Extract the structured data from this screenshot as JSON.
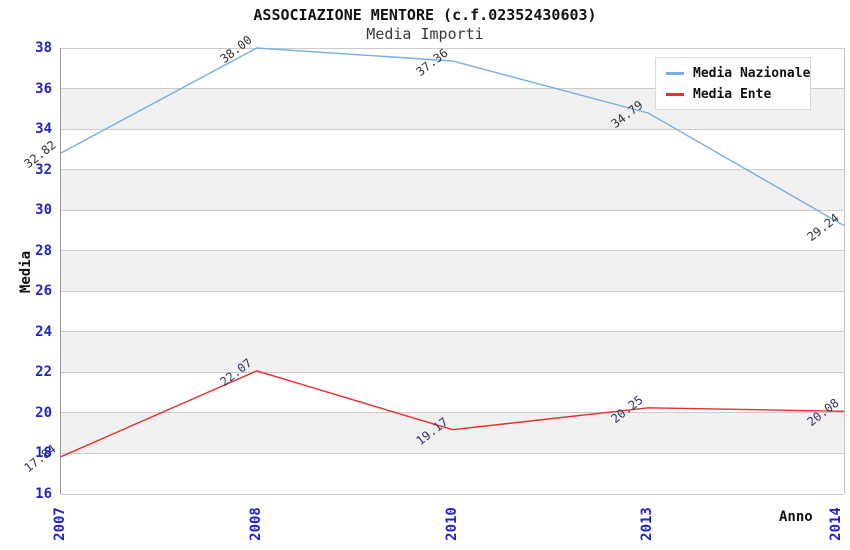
{
  "title": "ASSOCIAZIONE MENTORE (c.f.02352430603)",
  "subtitle": "Media Importi",
  "chart_data": {
    "type": "line",
    "categories": [
      "2007",
      "2008",
      "2010",
      "2013",
      "2014"
    ],
    "series": [
      {
        "name": "Media Nazionale",
        "color": "#78afe6",
        "label_color": "#333333",
        "values": [
          32.82,
          38.0,
          37.36,
          34.79,
          29.24
        ],
        "point_labels": [
          "32.82",
          "38.00",
          "37.36",
          "34.79",
          "29.24"
        ]
      },
      {
        "name": "Media Ente",
        "color": "#eb2d2d",
        "label_color": "#333366",
        "values": [
          17.84,
          22.07,
          19.17,
          20.25,
          20.08
        ],
        "point_labels": [
          "17.84",
          "22.07",
          "19.17",
          "20.25",
          "20.08"
        ]
      }
    ],
    "xlabel": "Anno",
    "ylabel": "Media",
    "ylim": [
      16,
      38
    ],
    "yticks": [
      38,
      36,
      34,
      32,
      30,
      28,
      26,
      24,
      22,
      20,
      18,
      16
    ],
    "legend_position": "top-right",
    "grid": "horizontal",
    "gridline_color": "#cccccc",
    "band_colors": [
      "#ffffff",
      "#f1f1f1"
    ],
    "tick_label_color": "#2323c8"
  }
}
